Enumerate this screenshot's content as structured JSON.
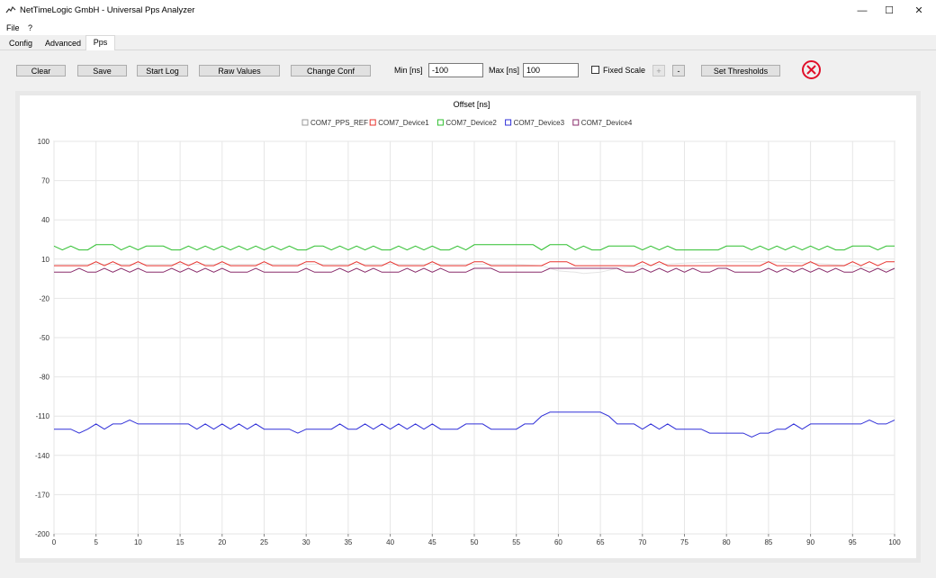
{
  "window": {
    "title": "NetTimeLogic GmbH - Universal Pps Analyzer",
    "minimize_glyph": "—",
    "maximize_glyph": "☐",
    "close_glyph": "✕",
    "app_icon": "chart-line-icon"
  },
  "menu": {
    "items": [
      "File",
      "?"
    ]
  },
  "tabs": [
    {
      "label": "Config"
    },
    {
      "label": "Advanced"
    },
    {
      "label": "Pps",
      "active": true
    }
  ],
  "toolbar": {
    "clear": "Clear",
    "save": "Save",
    "start_log": "Start Log",
    "raw_values": "Raw Values",
    "change_conf": "Change Conf",
    "min_label": "Min [ns]",
    "min_value": "-100",
    "max_label": "Max [ns]",
    "max_value": "100",
    "fixed_scale_label": "Fixed Scale",
    "fixed_scale_checked": false,
    "plus": "+",
    "minus": "-",
    "set_thresholds": "Set Thresholds",
    "stop_icon": "stop-circle-x-icon",
    "stop_color": "#e0102a"
  },
  "chart_data": {
    "type": "line",
    "title": "Offset [ns]",
    "xlim": [
      0,
      100
    ],
    "ylim": [
      -200,
      100
    ],
    "xticks": [
      0,
      5,
      10,
      15,
      20,
      25,
      30,
      35,
      40,
      45,
      50,
      55,
      60,
      65,
      70,
      75,
      80,
      85,
      90,
      95,
      100
    ],
    "yticks": [
      100,
      70,
      40,
      10,
      -20,
      -50,
      -80,
      -110,
      -140,
      -170,
      -200
    ],
    "grid": true,
    "legend_position": "top-center",
    "series": [
      {
        "name": "COM7_PPS_REF",
        "color": "#e4e4e4",
        "x": [
          0,
          10,
          20,
          30,
          40,
          50,
          55,
          58,
          60,
          62,
          63,
          65,
          67,
          70,
          75,
          80,
          85,
          90,
          95,
          97,
          100
        ],
        "y": [
          6,
          6,
          6,
          6,
          6,
          6,
          6,
          5,
          1,
          0,
          -1,
          0,
          3,
          5,
          7,
          8,
          8,
          7,
          5,
          3,
          2
        ]
      },
      {
        "name": "COM7_Device1",
        "color": "#e8332e",
        "x": [
          0,
          1,
          2,
          3,
          4,
          5,
          6,
          7,
          8,
          9,
          10,
          11,
          12,
          13,
          14,
          15,
          16,
          17,
          18,
          19,
          20,
          21,
          22,
          23,
          24,
          25,
          26,
          27,
          28,
          29,
          30,
          31,
          32,
          33,
          34,
          35,
          36,
          37,
          38,
          39,
          40,
          41,
          42,
          43,
          44,
          45,
          46,
          47,
          48,
          49,
          50,
          51,
          52,
          53,
          54,
          55,
          56,
          57,
          58,
          59,
          60,
          61,
          62,
          63,
          64,
          65,
          66,
          67,
          68,
          69,
          70,
          71,
          72,
          73,
          74,
          75,
          76,
          77,
          78,
          79,
          80,
          81,
          82,
          83,
          84,
          85,
          86,
          87,
          88,
          89,
          90,
          91,
          92,
          93,
          94,
          95,
          96,
          97,
          98,
          99,
          100
        ],
        "y": [
          5,
          5,
          5,
          5,
          5,
          8,
          5,
          8,
          5,
          5,
          8,
          5,
          5,
          5,
          5,
          8,
          5,
          8,
          5,
          5,
          8,
          5,
          5,
          5,
          5,
          8,
          5,
          5,
          5,
          5,
          8,
          8,
          5,
          5,
          5,
          5,
          8,
          5,
          5,
          5,
          8,
          5,
          5,
          5,
          5,
          8,
          5,
          5,
          5,
          5,
          8,
          8,
          5,
          5,
          5,
          5,
          5,
          5,
          5,
          8,
          8,
          8,
          5,
          5,
          5,
          5,
          5,
          5,
          5,
          5,
          8,
          5,
          8,
          5,
          5,
          5,
          5,
          5,
          5,
          5,
          5,
          5,
          5,
          5,
          5,
          8,
          5,
          5,
          5,
          5,
          8,
          5,
          5,
          5,
          5,
          8,
          5,
          8,
          5,
          8,
          8
        ]
      },
      {
        "name": "COM7_Device2",
        "color": "#2fbf2f",
        "x": [
          0,
          1,
          2,
          3,
          4,
          5,
          6,
          7,
          8,
          9,
          10,
          11,
          12,
          13,
          14,
          15,
          16,
          17,
          18,
          19,
          20,
          21,
          22,
          23,
          24,
          25,
          26,
          27,
          28,
          29,
          30,
          31,
          32,
          33,
          34,
          35,
          36,
          37,
          38,
          39,
          40,
          41,
          42,
          43,
          44,
          45,
          46,
          47,
          48,
          49,
          50,
          51,
          52,
          53,
          54,
          55,
          56,
          57,
          58,
          59,
          60,
          61,
          62,
          63,
          64,
          65,
          66,
          67,
          68,
          69,
          70,
          71,
          72,
          73,
          74,
          75,
          76,
          77,
          78,
          79,
          80,
          81,
          82,
          83,
          84,
          85,
          86,
          87,
          88,
          89,
          90,
          91,
          92,
          93,
          94,
          95,
          96,
          97,
          98,
          99,
          100
        ],
        "y": [
          20,
          17,
          20,
          17,
          17,
          21,
          21,
          21,
          17,
          20,
          17,
          20,
          20,
          20,
          17,
          17,
          20,
          17,
          20,
          17,
          20,
          17,
          20,
          17,
          20,
          17,
          20,
          17,
          20,
          17,
          17,
          20,
          20,
          17,
          20,
          17,
          20,
          17,
          20,
          17,
          17,
          20,
          17,
          20,
          17,
          20,
          17,
          17,
          20,
          17,
          21,
          21,
          21,
          21,
          21,
          21,
          21,
          21,
          17,
          21,
          21,
          21,
          17,
          20,
          17,
          17,
          20,
          20,
          20,
          20,
          17,
          20,
          17,
          20,
          17,
          17,
          17,
          17,
          17,
          17,
          20,
          20,
          20,
          17,
          20,
          17,
          20,
          17,
          20,
          17,
          20,
          17,
          20,
          17,
          17,
          20,
          20,
          20,
          17,
          20,
          20
        ]
      },
      {
        "name": "COM7_Device3",
        "color": "#3030d8",
        "x": [
          0,
          1,
          2,
          3,
          4,
          5,
          6,
          7,
          8,
          9,
          10,
          11,
          12,
          13,
          14,
          15,
          16,
          17,
          18,
          19,
          20,
          21,
          22,
          23,
          24,
          25,
          26,
          27,
          28,
          29,
          30,
          31,
          32,
          33,
          34,
          35,
          36,
          37,
          38,
          39,
          40,
          41,
          42,
          43,
          44,
          45,
          46,
          47,
          48,
          49,
          50,
          51,
          52,
          53,
          54,
          55,
          56,
          57,
          58,
          59,
          60,
          61,
          62,
          63,
          64,
          65,
          66,
          67,
          68,
          69,
          70,
          71,
          72,
          73,
          74,
          75,
          76,
          77,
          78,
          79,
          80,
          81,
          82,
          83,
          84,
          85,
          86,
          87,
          88,
          89,
          90,
          91,
          92,
          93,
          94,
          95,
          96,
          97,
          98,
          99,
          100
        ],
        "y": [
          -120,
          -120,
          -120,
          -123,
          -120,
          -116,
          -120,
          -116,
          -116,
          -113,
          -116,
          -116,
          -116,
          -116,
          -116,
          -116,
          -116,
          -120,
          -116,
          -120,
          -116,
          -120,
          -116,
          -120,
          -116,
          -120,
          -120,
          -120,
          -120,
          -123,
          -120,
          -120,
          -120,
          -120,
          -116,
          -120,
          -120,
          -116,
          -120,
          -116,
          -120,
          -116,
          -120,
          -116,
          -120,
          -116,
          -120,
          -120,
          -120,
          -116,
          -116,
          -116,
          -120,
          -120,
          -120,
          -120,
          -116,
          -116,
          -110,
          -107,
          -107,
          -107,
          -107,
          -107,
          -107,
          -107,
          -110,
          -116,
          -116,
          -116,
          -120,
          -116,
          -120,
          -116,
          -120,
          -120,
          -120,
          -120,
          -123,
          -123,
          -123,
          -123,
          -123,
          -126,
          -123,
          -123,
          -120,
          -120,
          -116,
          -120,
          -116,
          -116,
          -116,
          -116,
          -116,
          -116,
          -116,
          -113,
          -116,
          -116,
          -113
        ]
      },
      {
        "name": "COM7_Device4",
        "color": "#8a2d6c",
        "x": [
          0,
          1,
          2,
          3,
          4,
          5,
          6,
          7,
          8,
          9,
          10,
          11,
          12,
          13,
          14,
          15,
          16,
          17,
          18,
          19,
          20,
          21,
          22,
          23,
          24,
          25,
          26,
          27,
          28,
          29,
          30,
          31,
          32,
          33,
          34,
          35,
          36,
          37,
          38,
          39,
          40,
          41,
          42,
          43,
          44,
          45,
          46,
          47,
          48,
          49,
          50,
          51,
          52,
          53,
          54,
          55,
          56,
          57,
          58,
          59,
          60,
          61,
          62,
          63,
          64,
          65,
          66,
          67,
          68,
          69,
          70,
          71,
          72,
          73,
          74,
          75,
          76,
          77,
          78,
          79,
          80,
          81,
          82,
          83,
          84,
          85,
          86,
          87,
          88,
          89,
          90,
          91,
          92,
          93,
          94,
          95,
          96,
          97,
          98,
          99,
          100
        ],
        "y": [
          0,
          0,
          0,
          3,
          0,
          0,
          3,
          0,
          3,
          0,
          3,
          0,
          0,
          0,
          3,
          0,
          3,
          0,
          3,
          0,
          3,
          0,
          0,
          0,
          3,
          0,
          0,
          0,
          0,
          0,
          3,
          0,
          0,
          0,
          3,
          0,
          3,
          0,
          3,
          0,
          0,
          0,
          3,
          0,
          3,
          0,
          3,
          0,
          0,
          0,
          3,
          3,
          3,
          0,
          0,
          0,
          0,
          0,
          0,
          3,
          3,
          3,
          3,
          3,
          3,
          3,
          3,
          3,
          0,
          0,
          3,
          0,
          3,
          0,
          3,
          0,
          3,
          0,
          0,
          3,
          3,
          0,
          0,
          0,
          0,
          3,
          0,
          3,
          0,
          3,
          0,
          3,
          0,
          3,
          0,
          0,
          3,
          0,
          3,
          0,
          3
        ]
      }
    ]
  }
}
